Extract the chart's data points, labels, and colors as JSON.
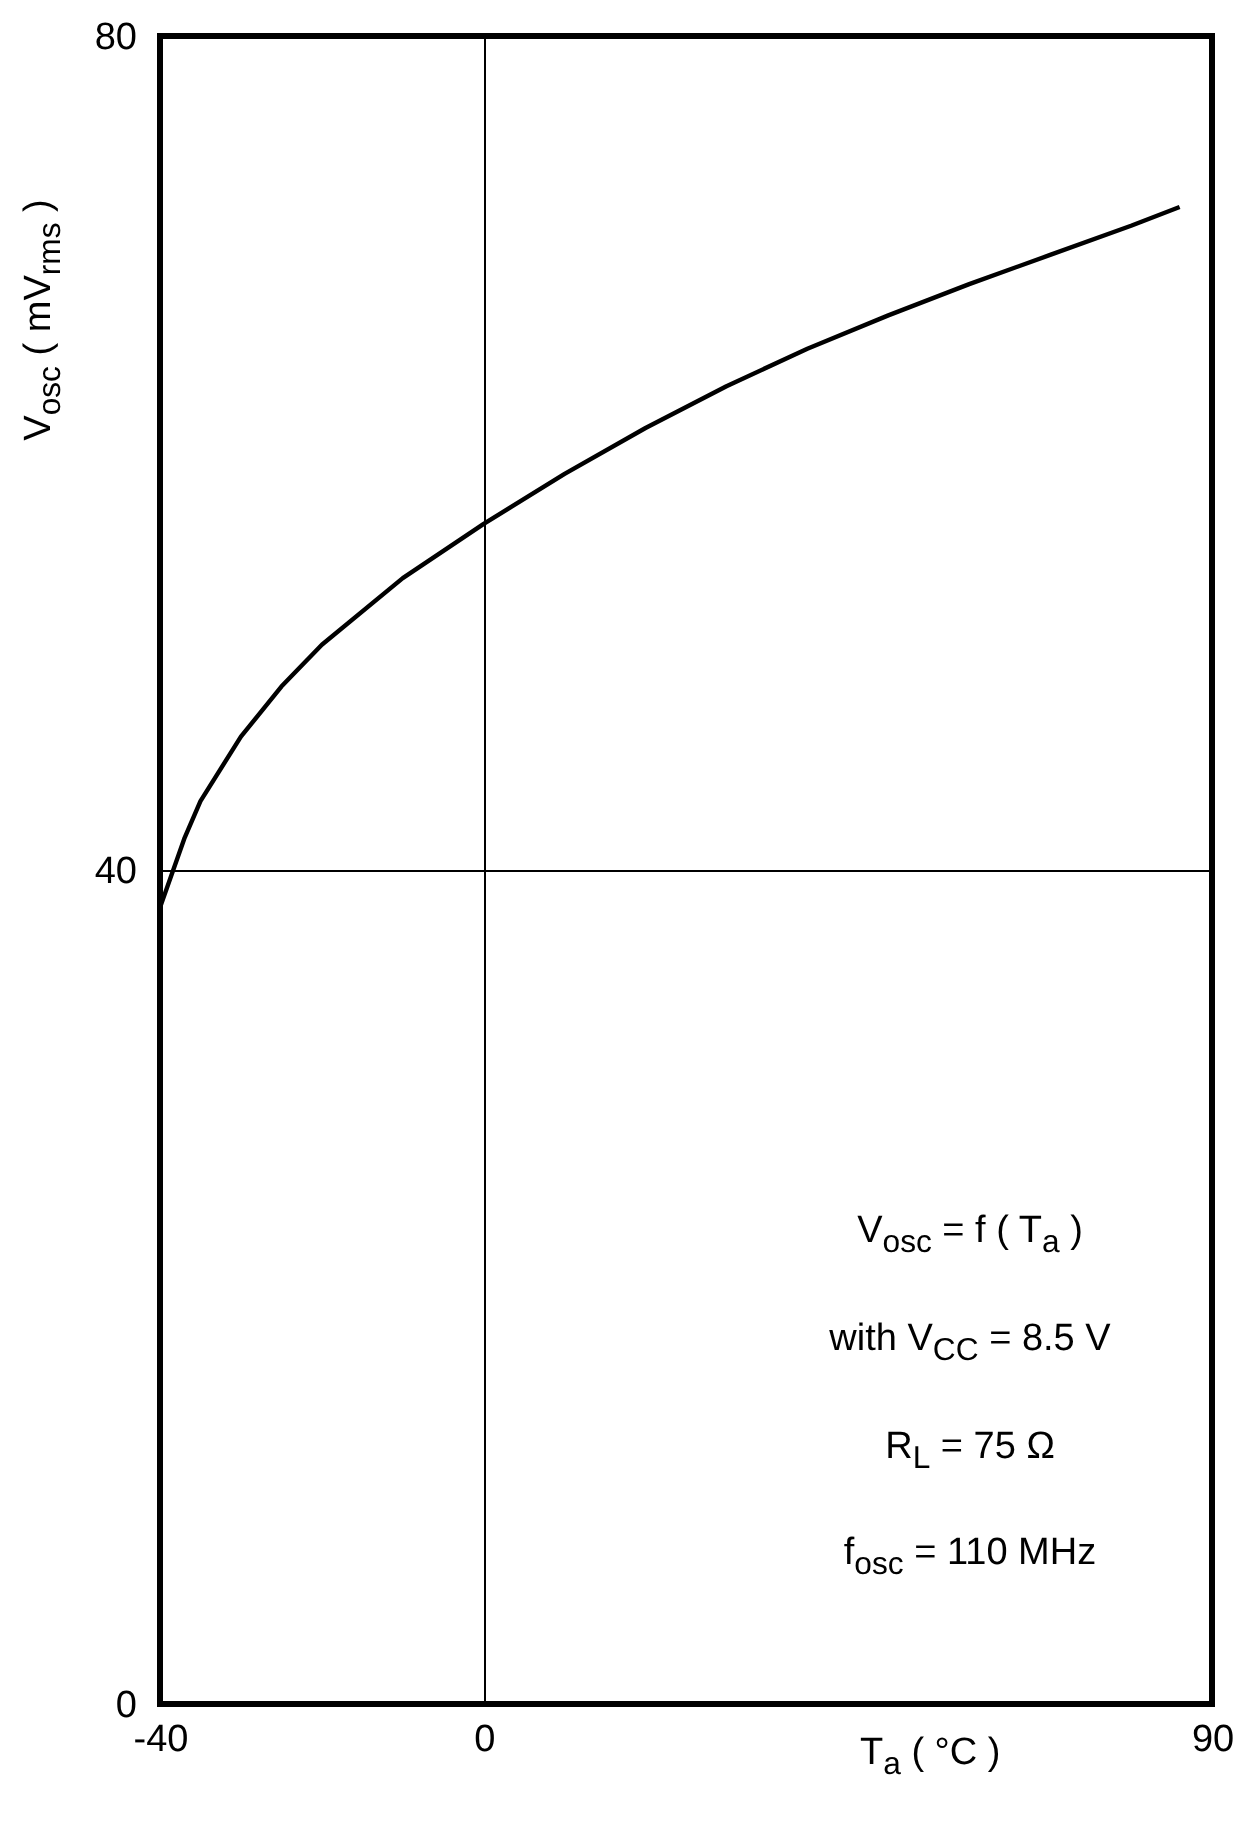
{
  "chart_data": {
    "type": "line",
    "xlabel": "T$_{a}$ ( °C )",
    "ylabel": "V$_{osc}$ ( mV$_{rms}$ )",
    "x": [
      -40,
      -37,
      -35,
      -30,
      -25,
      -20,
      -10,
      0,
      10,
      20,
      30,
      40,
      50,
      60,
      70,
      80,
      86
    ],
    "series": [
      {
        "color": "#000000",
        "values": [
          38.2,
          41.5,
          43.3,
          46.4,
          48.8,
          50.8,
          54,
          56.6,
          59,
          61.2,
          63.2,
          65,
          66.6,
          68.1,
          69.5,
          70.9,
          71.8
        ]
      }
    ],
    "xlim": [
      -40,
      90
    ],
    "xticks": [
      -40,
      0,
      90
    ],
    "ylim": [
      0,
      80
    ],
    "yticks": [
      0,
      40,
      80
    ],
    "grid": true,
    "marker": "none",
    "line_style": "solid",
    "annotations": [
      "V$_{osc}$ = f ( T$_{a}$ )",
      "with V$_{CC}$ = 8.5 V",
      "R$_{L}$ = 75 Ω",
      "f$_{osc}$ = 110 MHz"
    ]
  }
}
